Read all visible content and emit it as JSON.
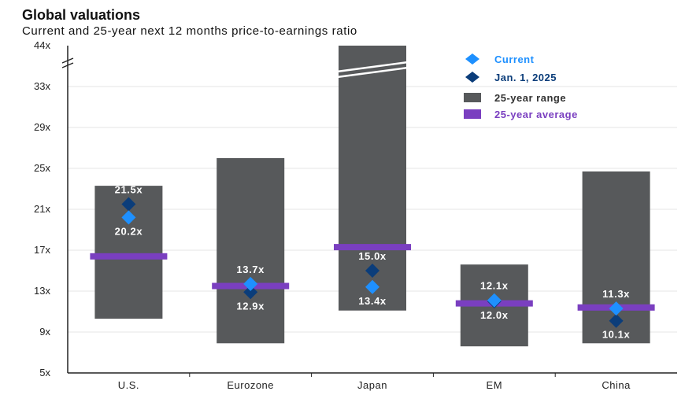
{
  "title": "Global valuations",
  "subtitle": "Current and 25-year next 12 months price-to-earnings ratio",
  "colors": {
    "current": "#1e90ff",
    "jan2025": "#0b3d7a",
    "range": "#57595b",
    "average": "#7a3fc0",
    "axis": "#222222",
    "grid": "#e6e6e6"
  },
  "chart_data": {
    "type": "bar",
    "categories": [
      "U.S.",
      "Eurozone",
      "Japan",
      "EM",
      "China"
    ],
    "y_ticks": [
      "5x",
      "9x",
      "13x",
      "17x",
      "21x",
      "25x",
      "29x",
      "33x",
      "44x"
    ],
    "ylim": [
      5,
      44
    ],
    "axis_break": "between 33x and 44x",
    "series": [
      {
        "name": "Current",
        "values": [
          20.2,
          13.7,
          13.4,
          12.1,
          11.3
        ]
      },
      {
        "name": "Jan. 1, 2025",
        "values": [
          21.5,
          12.9,
          15.0,
          12.0,
          10.1
        ]
      },
      {
        "name": "25-year range",
        "low": [
          10.3,
          7.9,
          11.1,
          7.6,
          7.9
        ],
        "high": [
          23.3,
          26.0,
          44.0,
          15.6,
          24.7
        ]
      },
      {
        "name": "25-year average",
        "values": [
          16.4,
          13.5,
          17.3,
          11.8,
          11.4
        ]
      }
    ],
    "data_labels": {
      "current": [
        "20.2x",
        "13.7x",
        "13.4x",
        "12.1x",
        "11.3x"
      ],
      "jan2025": [
        "21.5x",
        "12.9x",
        "15.0x",
        "12.0x",
        "10.1x"
      ]
    },
    "legend_position": "top-right"
  }
}
